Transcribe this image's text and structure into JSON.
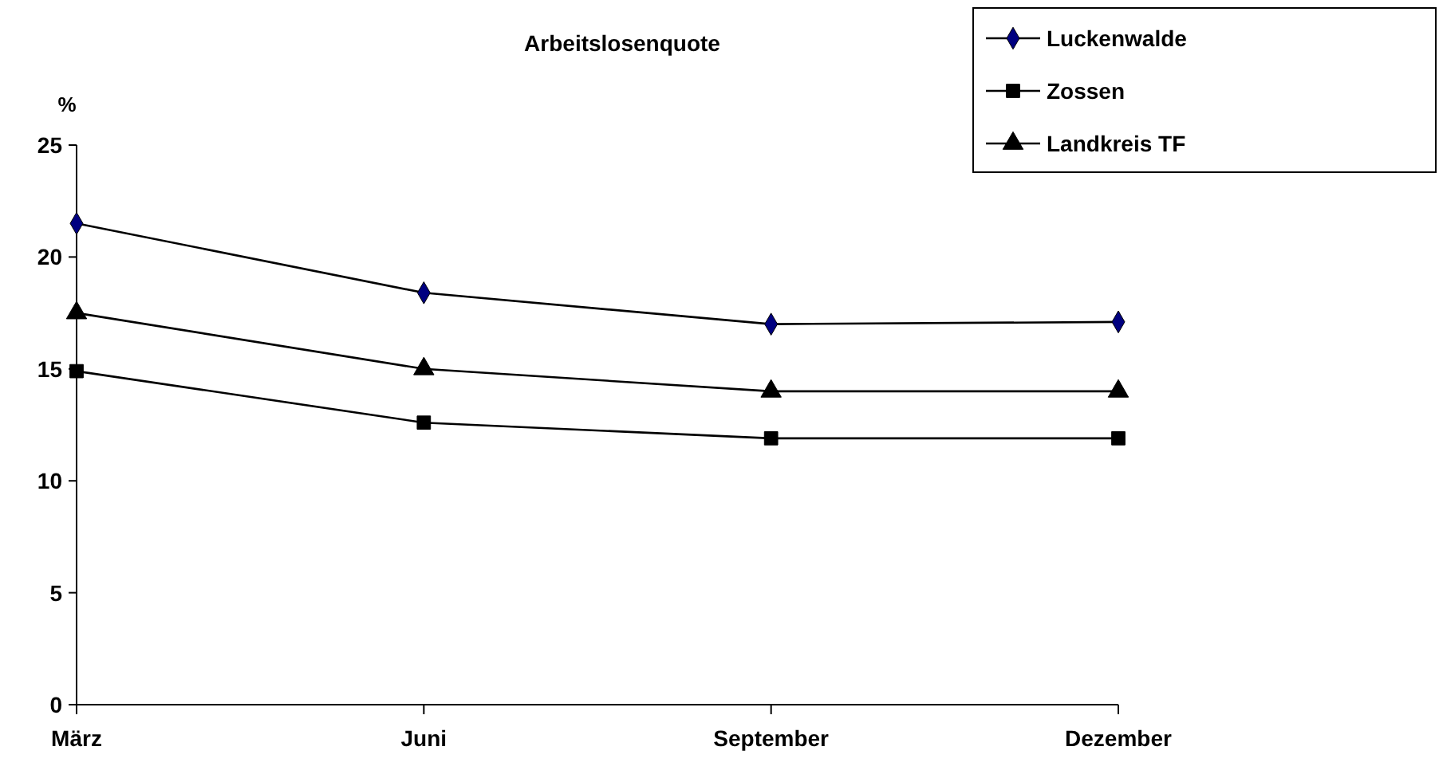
{
  "chart_data": {
    "type": "line",
    "title": "Arbeitslosenquote",
    "ylabel": "%",
    "categories": [
      "März",
      "Juni",
      "September",
      "Dezember"
    ],
    "series": [
      {
        "name": "Luckenwalde",
        "color": "#000000",
        "marker": "diamond",
        "values": [
          21.5,
          18.4,
          17.0,
          17.1
        ]
      },
      {
        "name": "Zossen",
        "color": "#000000",
        "marker": "square",
        "values": [
          14.9,
          12.6,
          11.9,
          11.9
        ]
      },
      {
        "name": "Landkreis TF",
        "color": "#000000",
        "marker": "triangle",
        "values": [
          17.5,
          15.0,
          14.0,
          14.0
        ]
      }
    ],
    "ylim": [
      0,
      25
    ],
    "yticks": [
      0,
      5,
      10,
      15,
      20,
      25
    ],
    "grid": false,
    "legend": "top right",
    "line_style": "solid"
  }
}
